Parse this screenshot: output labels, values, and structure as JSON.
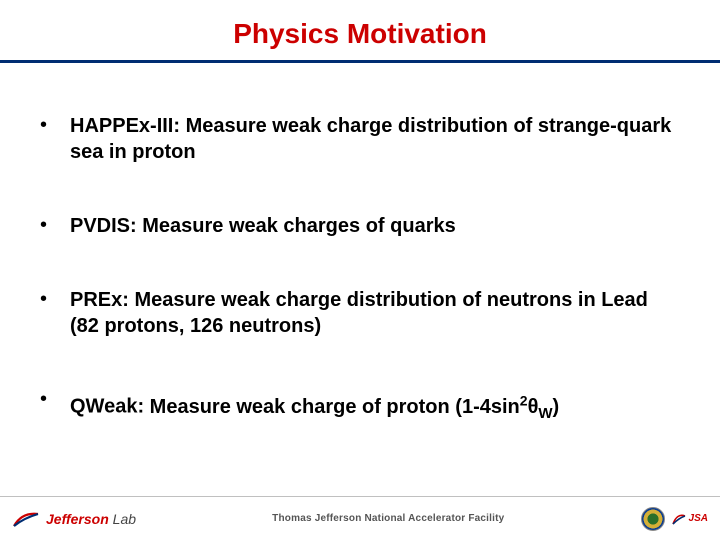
{
  "title": "Physics Motivation",
  "accent_color": "#cc0000",
  "divider_color": "#002d72",
  "bullets": [
    {
      "prefix": "HAPPEx-III:",
      "rest": " Measure weak charge distribution of strange-quark sea in proton"
    },
    {
      "prefix": "PVDIS:",
      "rest": " Measure weak charges of quarks"
    },
    {
      "prefix": "PREx:",
      "rest": " Measure weak charge distribution of neutrons in Lead (82 protons, 126 neutrons)"
    },
    {
      "prefix": "QWeak:",
      "rest_html": " Measure weak charge of proton (1-4sin<sup>2</sup>θ<sub>W</sub>)"
    }
  ],
  "footer": {
    "lab_name_bold": "Jefferson",
    "lab_name_rest": " Lab",
    "center": "Thomas Jefferson National Accelerator Facility",
    "jsa": "JSA"
  }
}
